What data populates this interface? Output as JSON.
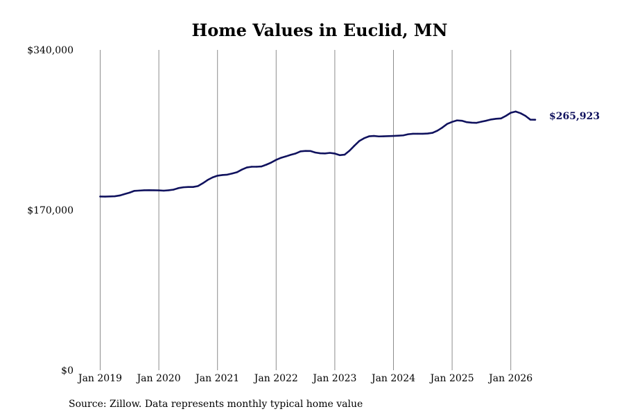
{
  "chart_data": {
    "type": "line",
    "title": "Home Values in Euclid, MN",
    "xlabel": "",
    "ylabel": "",
    "ylim": [
      0,
      340000
    ],
    "yticks": [
      {
        "value": 0,
        "label": "$0"
      },
      {
        "value": 170000,
        "label": "$170,000"
      },
      {
        "value": 340000,
        "label": "$340,000"
      }
    ],
    "xticks": [
      {
        "date": "2019-01",
        "label": "Jan 2019"
      },
      {
        "date": "2020-01",
        "label": "Jan 2020"
      },
      {
        "date": "2021-01",
        "label": "Jan 2021"
      },
      {
        "date": "2022-01",
        "label": "Jan 2022"
      },
      {
        "date": "2023-01",
        "label": "Jan 2023"
      },
      {
        "date": "2024-01",
        "label": "Jan 2024"
      },
      {
        "date": "2025-01",
        "label": "Jan 2025"
      },
      {
        "date": "2026-01",
        "label": "Jan 2026"
      }
    ],
    "grid": "vertical",
    "line_color": "#10125e",
    "end_label": "$265,923",
    "series": [
      {
        "x": [
          "2019-01",
          "2019-02",
          "2019-03",
          "2019-04",
          "2019-05",
          "2019-06",
          "2019-07",
          "2019-08",
          "2019-09",
          "2019-10",
          "2019-11",
          "2019-12",
          "2020-01",
          "2020-02",
          "2020-03",
          "2020-04",
          "2020-05",
          "2020-06",
          "2020-07",
          "2020-08",
          "2020-09",
          "2020-10",
          "2020-11",
          "2020-12",
          "2021-01",
          "2021-02",
          "2021-03",
          "2021-04",
          "2021-05",
          "2021-06",
          "2021-07",
          "2021-08",
          "2021-09",
          "2021-10",
          "2021-11",
          "2021-12",
          "2022-01",
          "2022-02",
          "2022-03",
          "2022-04",
          "2022-05",
          "2022-06",
          "2022-07",
          "2022-08",
          "2022-09",
          "2022-10",
          "2022-11",
          "2022-12",
          "2023-01",
          "2023-02",
          "2023-03",
          "2023-04",
          "2023-05",
          "2023-06",
          "2023-07",
          "2023-08",
          "2023-09",
          "2023-10",
          "2023-11",
          "2023-12",
          "2024-01",
          "2024-02",
          "2024-03",
          "2024-04",
          "2024-05",
          "2024-06",
          "2024-07",
          "2024-08",
          "2024-09",
          "2024-10",
          "2024-11",
          "2024-12",
          "2025-01",
          "2025-02",
          "2025-03",
          "2025-04",
          "2025-05",
          "2025-06",
          "2025-07",
          "2025-08",
          "2025-09",
          "2025-10",
          "2025-11",
          "2025-12",
          "2026-01",
          "2026-02",
          "2026-03",
          "2026-04",
          "2026-05",
          "2026-06"
        ],
        "values": [
          184400,
          184300,
          184500,
          184700,
          185500,
          187000,
          188500,
          190400,
          190700,
          191000,
          191100,
          191000,
          190900,
          190600,
          191000,
          191700,
          193300,
          194200,
          194500,
          194500,
          195500,
          198500,
          202000,
          204700,
          206500,
          207200,
          207600,
          208800,
          210200,
          213000,
          215200,
          216000,
          216000,
          216300,
          218200,
          220500,
          223300,
          225500,
          227000,
          228700,
          230100,
          232300,
          232800,
          232700,
          231100,
          230300,
          230100,
          230700,
          230000,
          228300,
          228800,
          233000,
          238300,
          243300,
          246300,
          248300,
          248700,
          248200,
          248300,
          248500,
          248700,
          249000,
          249300,
          250500,
          251000,
          251000,
          251000,
          251300,
          252000,
          254300,
          257600,
          261500,
          263600,
          265200,
          264800,
          263300,
          262800,
          262600,
          263800,
          264900,
          266200,
          266900,
          267300,
          270000,
          273300,
          274600,
          272800,
          270000,
          266000,
          265923
        ]
      }
    ]
  },
  "footer": {
    "source": "Source: Zillow. Data represents monthly typical home value"
  }
}
